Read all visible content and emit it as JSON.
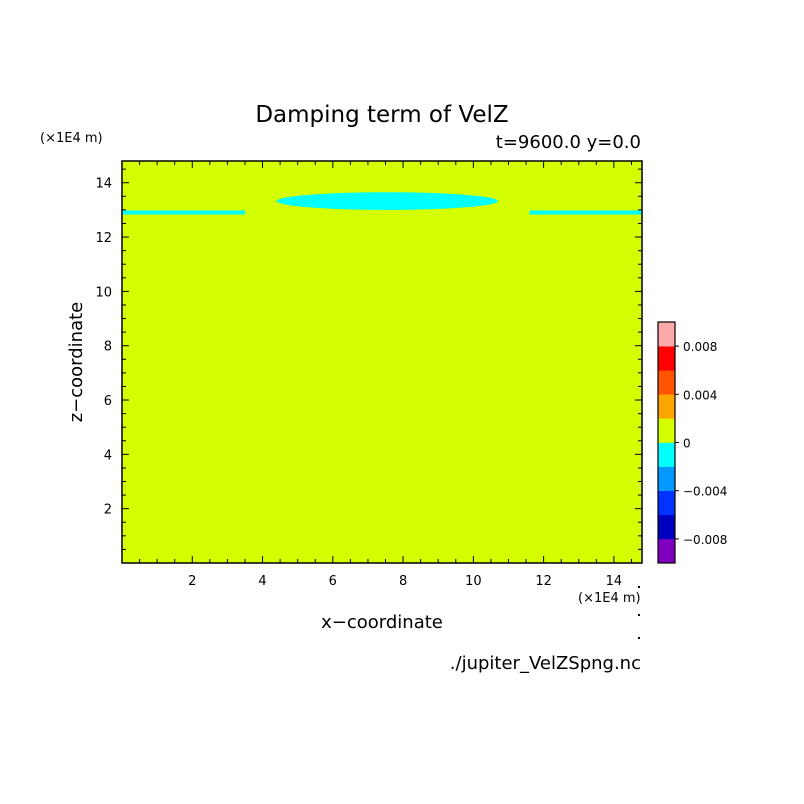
{
  "chart_data": {
    "type": "heatmap",
    "title": "Damping term of VelZ",
    "subtitle": "t=9600.0 y=0.0",
    "xlabel": "x−coordinate",
    "ylabel": "z−coordinate",
    "x_unit": "(×1E4 m)",
    "y_unit": "(×1E4 m)",
    "xlim": [
      0,
      14.8
    ],
    "ylim": [
      0,
      14.8
    ],
    "x_ticks": [
      2,
      4,
      6,
      8,
      10,
      12,
      14
    ],
    "y_ticks": [
      2,
      4,
      6,
      8,
      10,
      12,
      14
    ],
    "x_tick_labels": [
      "2",
      "4",
      "6",
      "8",
      "10",
      "12",
      "14"
    ],
    "y_tick_labels": [
      "2",
      "4",
      "6",
      "8",
      "10",
      "12",
      "14"
    ],
    "background_level": 0,
    "background_color": "#d4ff00",
    "regions": [
      {
        "level": -0.002,
        "color": "#00ffff",
        "shape": "strip",
        "x": [
          0,
          3.5
        ],
        "z": [
          12.83,
          12.98
        ]
      },
      {
        "level": -0.002,
        "color": "#00ffff",
        "shape": "lens",
        "x": [
          4.4,
          10.7
        ],
        "z": [
          13.0,
          13.65
        ]
      },
      {
        "level": -0.002,
        "color": "#00ffff",
        "shape": "strip",
        "x": [
          11.6,
          14.8
        ],
        "z": [
          12.83,
          12.98
        ]
      }
    ],
    "colorbar": {
      "levels": [
        -0.008,
        -0.006,
        -0.004,
        -0.002,
        0,
        0.002,
        0.004,
        0.006,
        0.008
      ],
      "colors": [
        "#7f00bf",
        "#0000c0",
        "#0033ff",
        "#0099ff",
        "#00ffff",
        "#d4ff00",
        "#ffa500",
        "#ff5500",
        "#ff0000",
        "#ffaaaa"
      ],
      "tick_values": [
        -0.008,
        -0.004,
        0,
        0.004,
        0.008
      ],
      "tick_labels": [
        "−0.008",
        "−0.004",
        "0",
        "0.004",
        "0.008"
      ]
    },
    "source": "./jupiter_VelZSpng.nc",
    "grid": false,
    "legend": "right colorbar"
  }
}
